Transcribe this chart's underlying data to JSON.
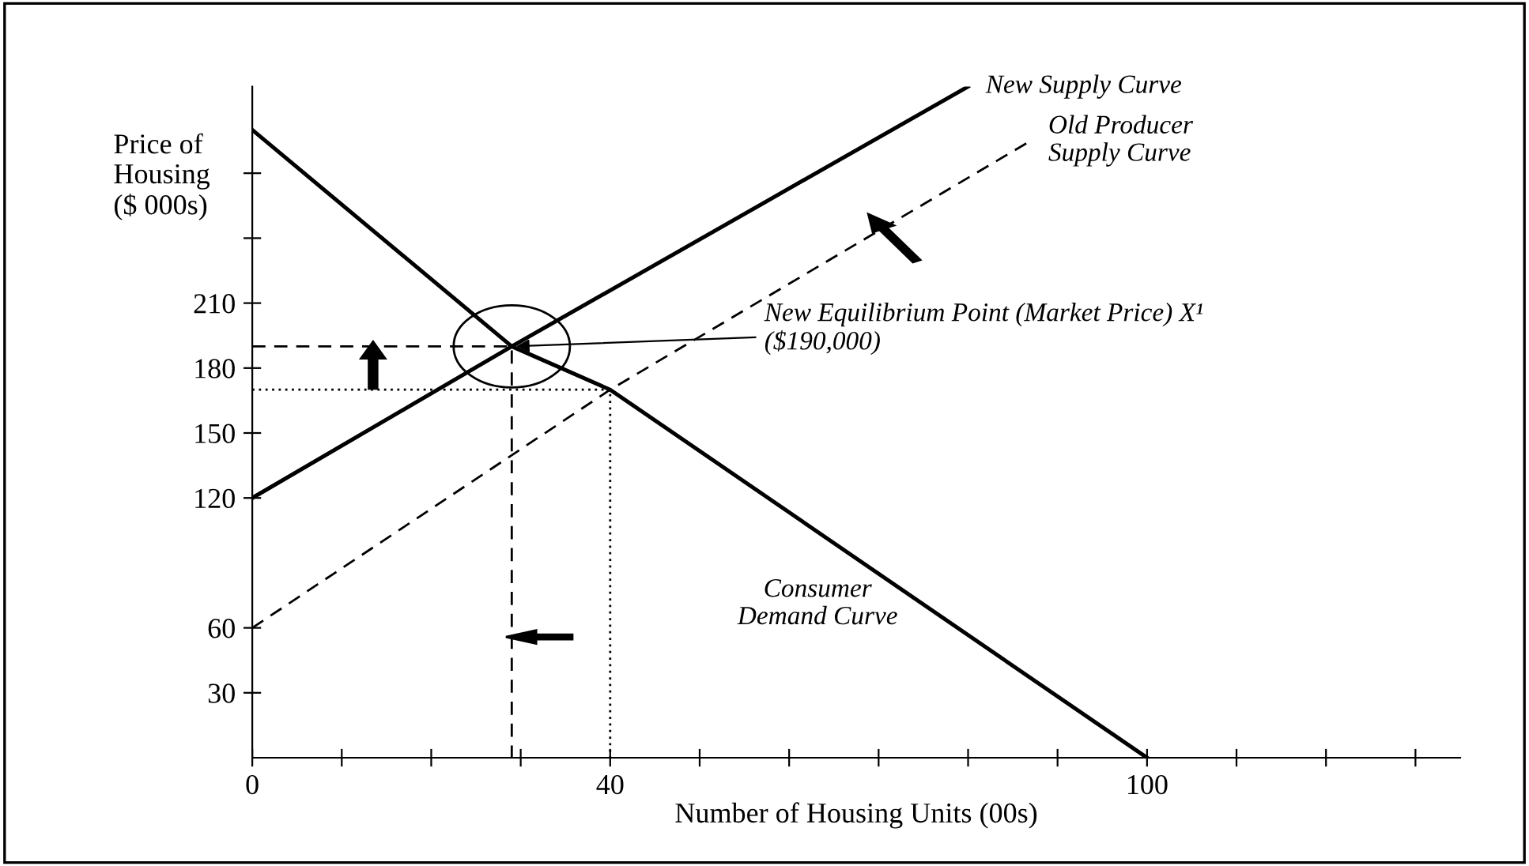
{
  "chart_data": {
    "type": "line",
    "xlabel": "Number of Housing Units (00s)",
    "ylabel": "Price of\nHousing\n($ 000s)",
    "xlim": [
      0,
      135
    ],
    "ylim": [
      0,
      310
    ],
    "xticks": [
      0,
      {
        "value": 10,
        "label": null
      },
      {
        "value": 20,
        "label": null
      },
      {
        "value": 30,
        "label": null
      },
      40,
      {
        "value": 50,
        "label": null
      },
      {
        "value": 60,
        "label": null
      },
      {
        "value": 70,
        "label": null
      },
      {
        "value": 80,
        "label": null
      },
      {
        "value": 90,
        "label": null
      },
      100,
      {
        "value": 110,
        "label": null
      },
      {
        "value": 120,
        "label": null
      },
      {
        "value": 130,
        "label": null
      }
    ],
    "yticks": [
      30,
      60,
      120,
      150,
      180,
      210,
      {
        "value": 240,
        "label": null
      },
      {
        "value": 270,
        "label": null
      }
    ],
    "grid": false,
    "legend": false,
    "series": [
      {
        "name": "New Supply Curve",
        "x": [
          0,
          29,
          80
        ],
        "values": [
          120,
          190,
          310
        ],
        "color": "#000000",
        "line_style": "solid"
      },
      {
        "name": "Old Producer\nSupply Curve",
        "x": [
          0,
          40,
          87
        ],
        "values": [
          60,
          170,
          285
        ],
        "color": "#000000",
        "line_style": "dashed"
      },
      {
        "name": "Consumer\nDemand Curve",
        "x": [
          0,
          29,
          40,
          100
        ],
        "values": [
          290,
          190,
          170,
          0
        ],
        "color": "#000000",
        "line_style": "solid"
      },
      {
        "x": [
          0,
          29,
          29
        ],
        "values": [
          190,
          190,
          0
        ],
        "color": "#000000",
        "line_style": "dashed"
      },
      {
        "x": [
          0,
          40,
          40
        ],
        "values": [
          170,
          170,
          0
        ],
        "color": "#000000",
        "line_style": "dotted"
      }
    ],
    "annotations": [
      {
        "text": "New Equilibrium Point (Market Price) X¹\n($190,000)",
        "x": 29,
        "y": 190
      }
    ]
  }
}
